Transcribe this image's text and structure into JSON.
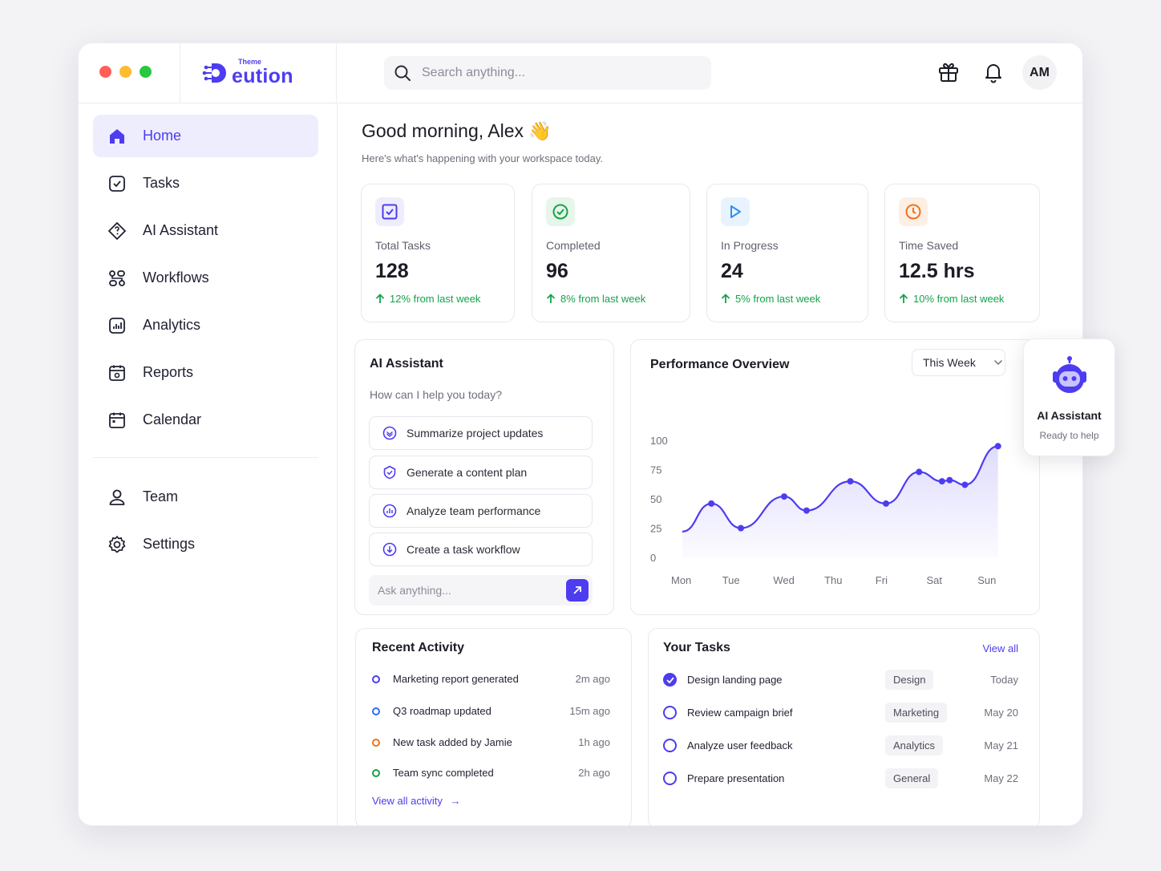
{
  "window": {
    "lights": [
      "#ff5f57",
      "#febc2e",
      "#28c840"
    ]
  },
  "brand": {
    "small": "Theme",
    "name": "eution",
    "color": "#4d3cf0"
  },
  "search": {
    "placeholder": "Search anything..."
  },
  "header": {
    "avatar_initials": "AM",
    "icons": [
      "gift-icon",
      "bell-icon"
    ]
  },
  "sidebar": {
    "items": [
      {
        "label": "Home",
        "icon": "home-icon",
        "active": true
      },
      {
        "label": "Tasks",
        "icon": "checkbox-icon"
      },
      {
        "label": "AI Assistant",
        "icon": "ai-diamond-icon"
      },
      {
        "label": "Workflows",
        "icon": "workflow-icon"
      },
      {
        "label": "Analytics",
        "icon": "analytics-icon"
      },
      {
        "label": "Reports",
        "icon": "reports-icon"
      },
      {
        "label": "Calendar",
        "icon": "calendar-icon"
      }
    ],
    "bottom_items": [
      {
        "label": "Team",
        "icon": "user-icon"
      },
      {
        "label": "Settings",
        "icon": "gear-icon"
      }
    ]
  },
  "greeting": {
    "title": "Good morning, Alex",
    "emoji": "👋",
    "subtitle": "Here's what's happening with your workspace today."
  },
  "stats": [
    {
      "label": "Total Tasks",
      "value": "128",
      "change": "12% from last week",
      "icon": "checkbox-icon",
      "color": "#4d3cf0"
    },
    {
      "label": "Completed",
      "value": "96",
      "change": "8% from last week",
      "icon": "check-circle-icon",
      "color": "#16a34a"
    },
    {
      "label": "In Progress",
      "value": "24",
      "change": "5% from last week",
      "icon": "play-icon",
      "color": "#2f8ff0"
    },
    {
      "label": "Time Saved",
      "value": "12.5 hrs",
      "change": "10% from last week",
      "icon": "clock-icon",
      "color": "#f2711c"
    }
  ],
  "ai_assistant": {
    "title": "AI Assistant",
    "subtitle": "How can I help you today?",
    "options": [
      {
        "label": "Summarize project updates",
        "icon": "summarize-icon"
      },
      {
        "label": "Generate a content plan",
        "icon": "shield-check-icon"
      },
      {
        "label": "Analyze team performance",
        "icon": "chart-circle-icon"
      },
      {
        "label": "Create a task workflow",
        "icon": "download-circle-icon"
      }
    ],
    "input_placeholder": "Ask anything..."
  },
  "performance": {
    "title": "Performance Overview",
    "period": "This Week"
  },
  "chart_data": {
    "type": "area",
    "title": "Performance Overview",
    "categories": [
      "Mon",
      "Tue",
      "Wed",
      "Thu",
      "Fri",
      "Sat",
      "Sun"
    ],
    "yticks": [
      100,
      75,
      50,
      25,
      0
    ],
    "ylim": [
      0,
      100
    ],
    "points": [
      {
        "x": 0,
        "y": 22
      },
      {
        "x": 0.57,
        "y": 46
      },
      {
        "x": 1.15,
        "y": 25
      },
      {
        "x": 2.0,
        "y": 52
      },
      {
        "x": 2.44,
        "y": 40
      },
      {
        "x": 3.3,
        "y": 65
      },
      {
        "x": 4.0,
        "y": 46
      },
      {
        "x": 4.65,
        "y": 73
      },
      {
        "x": 5.1,
        "y": 65
      },
      {
        "x": 5.25,
        "y": 66
      },
      {
        "x": 5.55,
        "y": 62
      },
      {
        "x": 6.2,
        "y": 95
      }
    ],
    "color": "#4d3cf0",
    "grid": false
  },
  "floating_ai": {
    "title": "AI Assistant",
    "subtitle": "Ready to help"
  },
  "recent_activity": {
    "title": "Recent Activity",
    "items": [
      {
        "text": "Marketing report generated",
        "time": "2m ago",
        "color": "#4d3cf0"
      },
      {
        "text": "Q3 roadmap updated",
        "time": "15m ago",
        "color": "#2f6ff0"
      },
      {
        "text": "New task added by Jamie",
        "time": "1h ago",
        "color": "#f2711c"
      },
      {
        "text": "Team sync completed",
        "time": "2h ago",
        "color": "#16a34a"
      }
    ],
    "link": "View all activity",
    "link_arrow": "→"
  },
  "your_tasks": {
    "title": "Your Tasks",
    "view_all": "View all",
    "items": [
      {
        "name": "Design landing page",
        "tag": "Design",
        "date": "Today",
        "done": true
      },
      {
        "name": "Review campaign brief",
        "tag": "Marketing",
        "date": "May 20",
        "done": false
      },
      {
        "name": "Analyze user feedback",
        "tag": "Analytics",
        "date": "May 21",
        "done": false
      },
      {
        "name": "Prepare presentation",
        "tag": "General",
        "date": "May 22",
        "done": false
      }
    ]
  }
}
